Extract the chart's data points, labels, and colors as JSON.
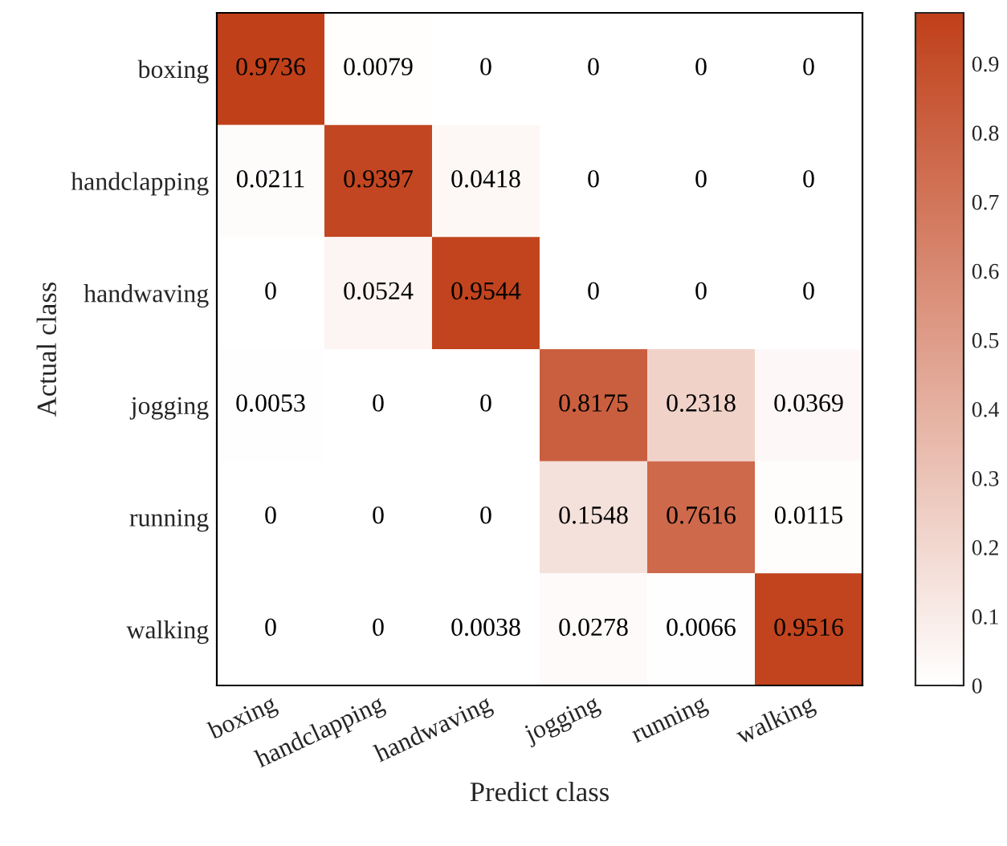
{
  "chart_data": {
    "type": "heatmap",
    "xlabel": "Predict class",
    "ylabel": "Actual class",
    "categories": [
      "boxing",
      "handclapping",
      "handwaving",
      "jogging",
      "running",
      "walking"
    ],
    "y_categories": [
      "boxing",
      "handclapping",
      "handwaving",
      "jogging",
      "running",
      "walking"
    ],
    "cells": [
      [
        0.9736,
        0.0079,
        0,
        0,
        0,
        0
      ],
      [
        0.0211,
        0.9397,
        0.0418,
        0,
        0,
        0
      ],
      [
        0,
        0.0524,
        0.9544,
        0,
        0,
        0
      ],
      [
        0.0053,
        0,
        0,
        0.8175,
        0.2318,
        0.0369
      ],
      [
        0,
        0,
        0,
        0.1548,
        0.7616,
        0.0115
      ],
      [
        0,
        0,
        0.0038,
        0.0278,
        0.0066,
        0.9516
      ]
    ],
    "colors": [
      "#ffffff",
      "#c0401a"
    ],
    "data_labels": true,
    "clim": [
      0,
      0.9736
    ],
    "cticks": [
      0,
      0.1,
      0.2,
      0.3,
      0.4,
      0.5,
      0.6,
      0.7,
      0.8,
      0.9
    ]
  }
}
